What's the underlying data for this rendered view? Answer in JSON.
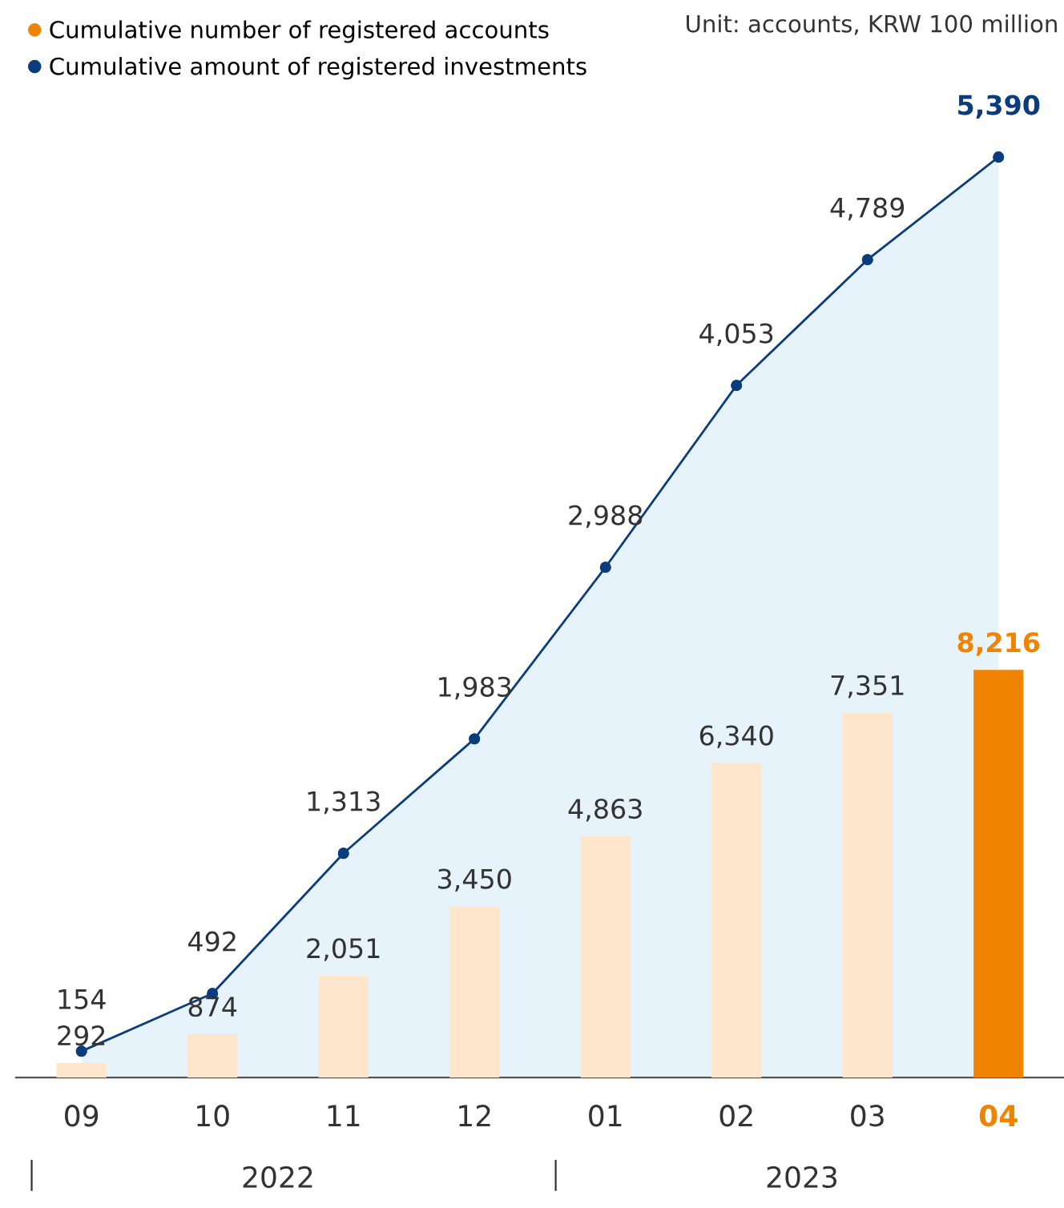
{
  "chart_data": {
    "type": "bar",
    "categories": [
      "09",
      "10",
      "11",
      "12",
      "01",
      "02",
      "03",
      "04"
    ],
    "series": [
      {
        "name": "Cumulative number of registered accounts",
        "colors": [
          "#fde6cc",
          "#fde6cc",
          "#fde6cc",
          "#fde6cc",
          "#fde6cc",
          "#fde6cc",
          "#fde6cc",
          "#f08300"
        ],
        "values": [
          292,
          874,
          2051,
          3450,
          4863,
          6340,
          7351,
          8216
        ],
        "value_labels": [
          "292",
          "874",
          "2,051",
          "3,450",
          "4,863",
          "6,340",
          "7,351",
          "8,216"
        ]
      },
      {
        "name": "Cumulative amount of registered investments",
        "type": "area",
        "axis": "y2",
        "color": "#0b3d7e",
        "values": [
          154,
          492,
          1313,
          1983,
          2988,
          4053,
          4789,
          5390
        ],
        "value_labels": [
          "154",
          "492",
          "1,313",
          "1,983",
          "2,988",
          "4,053",
          "4,789",
          "5,390"
        ]
      }
    ],
    "marker": "circle",
    "legend": "top left",
    "grid": false,
    "annotations": [
      "Unit: accounts, KRW 100 million",
      "2022",
      "2023"
    ]
  }
}
